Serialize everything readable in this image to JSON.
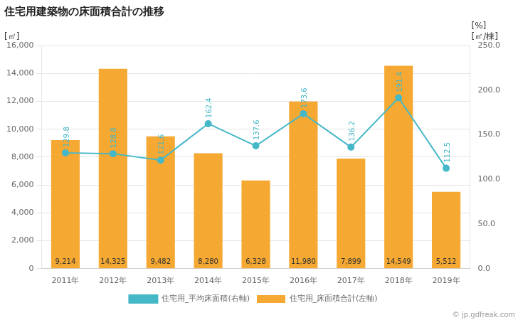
{
  "chart_data": {
    "type": "bar",
    "title": "住宅用建築物の床面積合計の推移",
    "ylabel": "[㎡]",
    "y2label": "[㎡/棟]",
    "annotations": [
      "[%]",
      "© jp.gdfreak.com"
    ],
    "categories": [
      "2011年",
      "2012年",
      "2013年",
      "2014年",
      "2015年",
      "2016年",
      "2017年",
      "2018年",
      "2019年"
    ],
    "series": [
      {
        "name": "住宅用_床面積合計(左軸)",
        "type": "bar",
        "color": "#f5a832",
        "values": [
          9214,
          14325,
          9482,
          8280,
          6328,
          11980,
          7899,
          14549,
          5512
        ],
        "value_labels": [
          "9,214",
          "14,325",
          "9,482",
          "8,280",
          "6,328",
          "11,980",
          "7,899",
          "14,549",
          "5,512"
        ]
      },
      {
        "name": "住宅用_平均床面積(右軸)",
        "type": "line",
        "color": "#45b8c8",
        "marker": "circle",
        "axis": "y2",
        "values": [
          129.8,
          128.8,
          121.6,
          162.4,
          137.6,
          173.6,
          136.2,
          191.4,
          112.5
        ]
      }
    ],
    "ylim": [
      0,
      16000
    ],
    "yticks": [
      0,
      {
        "value": 2000,
        "label": "2,000"
      },
      {
        "value": 4000,
        "label": "4,000"
      },
      {
        "value": 6000,
        "label": "6,000"
      },
      {
        "value": 8000,
        "label": "8,000"
      },
      {
        "value": 10000,
        "label": "10,000"
      },
      {
        "value": 12000,
        "label": "12,000"
      },
      {
        "value": 14000,
        "label": "14,000"
      },
      {
        "value": 16000,
        "label": "16,000"
      }
    ],
    "y2lim": [
      0,
      250
    ],
    "y2ticks": [
      {
        "value": 0,
        "label": "0.0"
      },
      {
        "value": 50,
        "label": "50.0"
      },
      {
        "value": 100,
        "label": "100.0"
      },
      {
        "value": 150,
        "label": "150.0"
      },
      {
        "value": 200,
        "label": "200.0"
      },
      {
        "value": 250,
        "label": "250.0"
      }
    ],
    "grid": true,
    "legend": "bottom",
    "data_labels": true
  }
}
